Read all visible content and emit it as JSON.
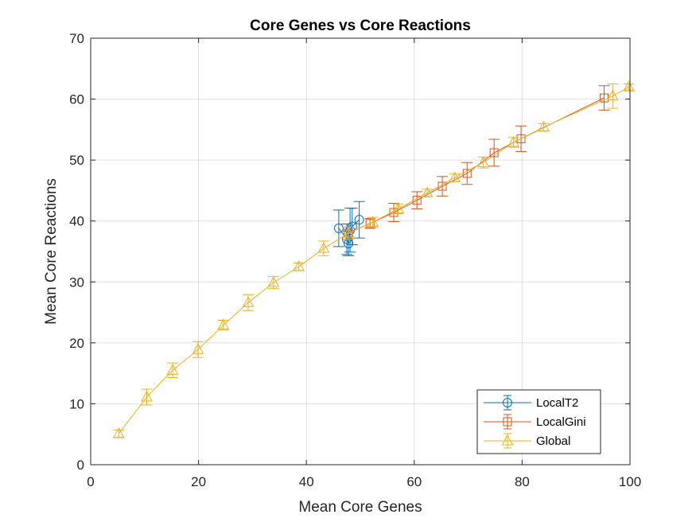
{
  "chart_data": {
    "type": "line",
    "title": "Core Genes vs Core Reactions",
    "xlabel": "Mean Core Genes",
    "ylabel": "Mean Core Reactions",
    "xlim": [
      0,
      100
    ],
    "ylim": [
      0,
      70
    ],
    "xticks": [
      "0",
      "20",
      "40",
      "60",
      "80",
      "100"
    ],
    "yticks": [
      "0",
      "10",
      "20",
      "30",
      "40",
      "50",
      "60",
      "70"
    ],
    "grid": true,
    "legend_position": "bottom-right",
    "series": [
      {
        "name": "LocalT2",
        "color": "#0072BD",
        "marker": "circle",
        "points": [
          {
            "x": 46.0,
            "y": 38.8,
            "err": 3.0
          },
          {
            "x": 47.5,
            "y": 37.0,
            "err": 2.5
          },
          {
            "x": 47.8,
            "y": 36.3,
            "err": 2.0
          },
          {
            "x": 48.1,
            "y": 38.5,
            "err": 3.6
          },
          {
            "x": 48.5,
            "y": 39.1,
            "err": 3.0
          },
          {
            "x": 49.8,
            "y": 40.2,
            "err": 3.0
          }
        ]
      },
      {
        "name": "LocalGini",
        "color": "#D95319",
        "marker": "square",
        "points": [
          {
            "x": 47.7,
            "y": 38.0,
            "err": 1.0
          },
          {
            "x": 51.8,
            "y": 39.6,
            "err": 0.8
          },
          {
            "x": 56.2,
            "y": 41.4,
            "err": 1.5
          },
          {
            "x": 60.5,
            "y": 43.4,
            "err": 1.4
          },
          {
            "x": 65.2,
            "y": 45.7,
            "err": 1.6
          },
          {
            "x": 69.8,
            "y": 47.8,
            "err": 1.8
          },
          {
            "x": 74.8,
            "y": 51.2,
            "err": 2.2
          },
          {
            "x": 79.8,
            "y": 53.5,
            "err": 2.1
          },
          {
            "x": 95.2,
            "y": 60.2,
            "err": 2.0
          }
        ]
      },
      {
        "name": "Global",
        "color": "#EDB120",
        "marker": "triangle",
        "points": [
          {
            "x": 5.2,
            "y": 5.1,
            "err": 0.6
          },
          {
            "x": 10.4,
            "y": 11.1,
            "err": 1.3
          },
          {
            "x": 15.2,
            "y": 15.5,
            "err": 1.2
          },
          {
            "x": 19.9,
            "y": 18.9,
            "err": 1.3
          },
          {
            "x": 24.6,
            "y": 22.9,
            "err": 0.8
          },
          {
            "x": 29.2,
            "y": 26.6,
            "err": 1.3
          },
          {
            "x": 33.9,
            "y": 29.9,
            "err": 1.0
          },
          {
            "x": 38.6,
            "y": 32.5,
            "err": 0.6
          },
          {
            "x": 43.2,
            "y": 35.5,
            "err": 1.2
          },
          {
            "x": 47.8,
            "y": 38.0,
            "err": 1.0
          },
          {
            "x": 52.3,
            "y": 39.8,
            "err": 0.8
          },
          {
            "x": 57.0,
            "y": 42.0,
            "err": 0.8
          },
          {
            "x": 62.4,
            "y": 44.6,
            "err": 0.6
          },
          {
            "x": 67.5,
            "y": 47.1,
            "err": 0.6
          },
          {
            "x": 72.8,
            "y": 49.6,
            "err": 0.9
          },
          {
            "x": 78.4,
            "y": 52.9,
            "err": 0.8
          },
          {
            "x": 84.0,
            "y": 55.4,
            "err": 0.6
          },
          {
            "x": 96.8,
            "y": 60.5,
            "err": 2.0
          },
          {
            "x": 99.8,
            "y": 62.0,
            "err": 0.5
          }
        ]
      }
    ]
  }
}
